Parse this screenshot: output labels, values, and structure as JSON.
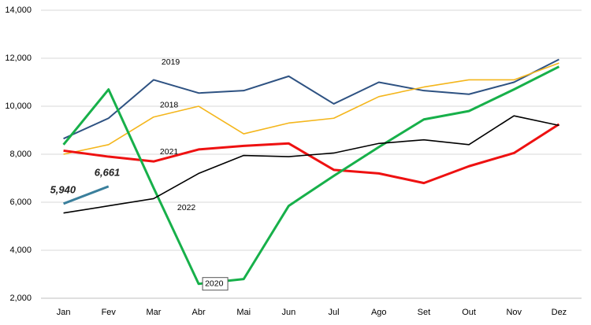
{
  "chart_data": {
    "type": "line",
    "categories": [
      "Jan",
      "Fev",
      "Mar",
      "Abr",
      "Mai",
      "Jun",
      "Jul",
      "Ago",
      "Set",
      "Out",
      "Nov",
      "Dez"
    ],
    "ylim": [
      2000,
      14000
    ],
    "yticks": [
      {
        "value": 2000,
        "label": "2,000"
      },
      {
        "value": 4000,
        "label": "4,000"
      },
      {
        "value": 6000,
        "label": "6,000"
      },
      {
        "value": 8000,
        "label": "8,000"
      },
      {
        "value": 10000,
        "label": "10,000"
      },
      {
        "value": 12000,
        "label": "12,000"
      },
      {
        "value": 14000,
        "label": "14,000"
      }
    ],
    "grid": true,
    "series": [
      {
        "name": "2019",
        "color": "#2e5282",
        "values": [
          8650,
          9500,
          11100,
          10550,
          10650,
          11250,
          10100,
          11000,
          10650,
          10500,
          11000,
          11950
        ]
      },
      {
        "name": "2018",
        "color": "#f4b61c",
        "values": [
          8000,
          8400,
          9550,
          10000,
          8850,
          9300,
          9500,
          10400,
          10800,
          11100,
          11100,
          11800
        ]
      },
      {
        "name": "2021",
        "color": "#ee1111",
        "values": [
          8150,
          7900,
          7700,
          8200,
          8350,
          8450,
          7350,
          7200,
          6800,
          7500,
          8050,
          9250
        ]
      },
      {
        "name": "2020",
        "color": "#17b04a",
        "values": [
          8400,
          10700,
          6600,
          2600,
          2800,
          5850,
          7100,
          8300,
          9450,
          9800,
          10700,
          11650
        ]
      },
      {
        "name": "2022",
        "color": "#000000",
        "values": [
          5550,
          5850,
          6150,
          7200,
          7950,
          7900,
          8050,
          8450,
          8600,
          8400,
          9600,
          9200
        ]
      },
      {
        "color": "#3a7f9c",
        "values": [
          5940,
          6661,
          null,
          null,
          null,
          null,
          null,
          null,
          null,
          null,
          null,
          null
        ],
        "value_labels": [
          "5,940",
          "6,661",
          null,
          null,
          null,
          null,
          null,
          null,
          null,
          null,
          null,
          null
        ]
      }
    ]
  }
}
